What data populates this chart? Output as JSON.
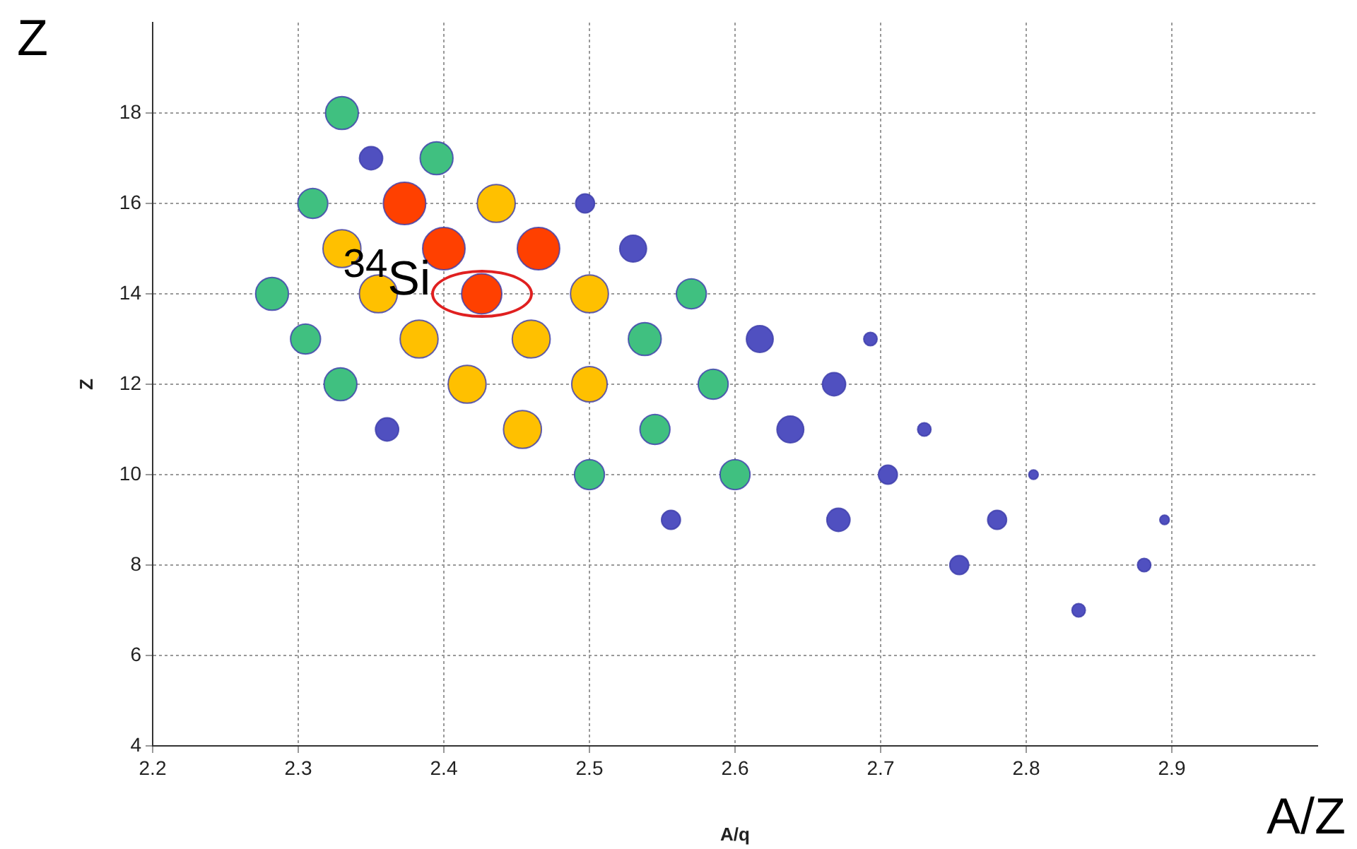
{
  "chart_data": {
    "type": "bubble",
    "xlabel": "A/q",
    "ylabel": "Z",
    "xlim": [
      2.2,
      3.0
    ],
    "xticks": [
      2.2,
      2.3,
      2.4,
      2.5,
      2.6,
      2.7,
      2.8,
      2.9
    ],
    "ylim": [
      4,
      20
    ],
    "yticks": [
      4,
      6,
      8,
      10,
      12,
      14,
      16,
      18
    ],
    "grid": true,
    "legend": false,
    "relative": false,
    "series": [
      {
        "x": [
          2.33,
          2.35,
          2.395,
          2.31,
          2.373,
          2.436,
          2.497,
          2.33,
          2.4,
          2.465,
          2.53,
          2.282,
          2.355,
          2.426,
          2.5,
          2.57,
          2.305,
          2.383,
          2.46,
          2.538,
          2.617,
          2.693,
          2.329,
          2.416,
          2.5,
          2.585,
          2.668,
          2.361,
          2.454,
          2.545,
          2.638,
          2.73,
          2.5,
          2.6,
          2.705,
          2.805,
          2.556,
          2.671,
          2.78,
          2.895,
          2.754,
          2.881,
          2.836
        ],
        "values": [
          18,
          17,
          17,
          16,
          16,
          16,
          16,
          15,
          15,
          15,
          15,
          14,
          14,
          14,
          14,
          14,
          13,
          13,
          13,
          13,
          13,
          13,
          12,
          12,
          12,
          12,
          12,
          11,
          11,
          11,
          11,
          11,
          10,
          10,
          10,
          10,
          9,
          9,
          9,
          9,
          8,
          8,
          7
        ],
        "sizes": [
          0.6,
          0.3,
          0.6,
          0.5,
          1,
          0.8,
          0.2,
          0.8,
          1,
          1,
          0.4,
          0.6,
          0.8,
          0.9,
          0.8,
          0.5,
          0.5,
          0.8,
          0.8,
          0.6,
          0.4,
          0.1,
          0.6,
          0.8,
          0.7,
          0.5,
          0.3,
          0.3,
          0.8,
          0.5,
          0.4,
          0.1,
          0.5,
          0.5,
          0.2,
          0.05,
          0.2,
          0.3,
          0.2,
          0.05,
          0.2,
          0.1,
          0.1
        ],
        "colors": [
          "#40c080",
          "#5050c0",
          "#40c080",
          "#40c080",
          "#ff4000",
          "#ffc000",
          "#5050c0",
          "#ffc000",
          "#ff4000",
          "#ff4000",
          "#5050c0",
          "#40c080",
          "#ffc000",
          "#ff4000",
          "#ffc000",
          "#40c080",
          "#40c080",
          "#ffc000",
          "#ffc000",
          "#40c080",
          "#5050c0",
          "#5050c0",
          "#40c080",
          "#ffc000",
          "#ffc000",
          "#40c080",
          "#5050c0",
          "#5050c0",
          "#ffc000",
          "#40c080",
          "#5050c0",
          "#5050c0",
          "#40c080",
          "#40c080",
          "#5050c0",
          "#5050c0",
          "#5050c0",
          "#5050c0",
          "#5050c0",
          "#5050c0",
          "#5050c0",
          "#5050c0",
          "#5050c0"
        ]
      }
    ],
    "annotations": [
      {
        "text": "$^{34}$Si",
        "x": 2.426,
        "y": 14
      },
      "Z",
      "A/Z"
    ]
  }
}
